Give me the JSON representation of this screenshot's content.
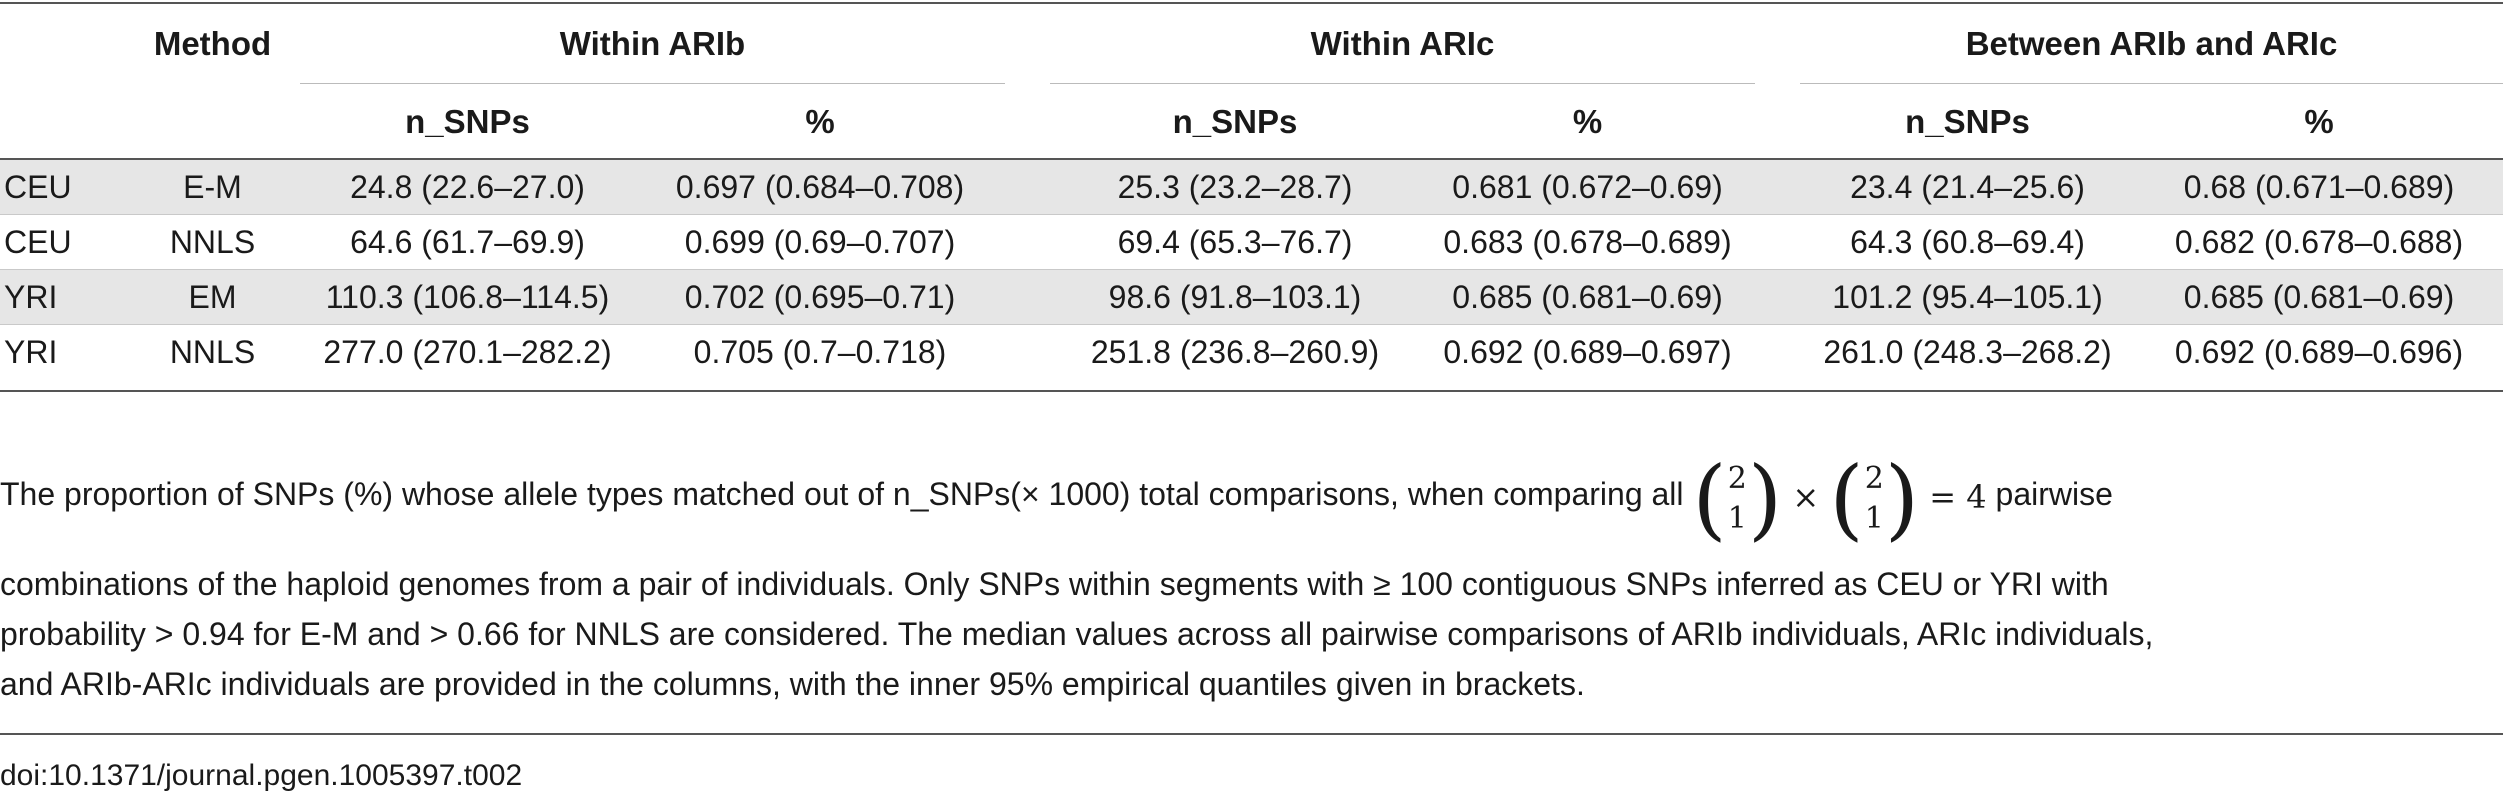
{
  "table": {
    "header": {
      "method": "Method",
      "groups": [
        "Within ARIb",
        "Within ARIc",
        "Between ARIb and ARIc"
      ],
      "sub": [
        "n_SNPs",
        "%",
        "n_SNPs",
        "%",
        "n_SNPs",
        "%"
      ]
    },
    "rows": [
      {
        "pop": "CEU",
        "method": "E-M",
        "cells": [
          "24.8 (22.6–27.0)",
          "0.697 (0.684–0.708)",
          "25.3 (23.2–28.7)",
          "0.681 (0.672–0.69)",
          "23.4 (21.4–25.6)",
          "0.68 (0.671–0.689)"
        ]
      },
      {
        "pop": "CEU",
        "method": "NNLS",
        "cells": [
          "64.6 (61.7–69.9)",
          "0.699 (0.69–0.707)",
          "69.4 (65.3–76.7)",
          "0.683 (0.678–0.689)",
          "64.3 (60.8–69.4)",
          "0.682 (0.678–0.688)"
        ]
      },
      {
        "pop": "YRI",
        "method": "EM",
        "cells": [
          "110.3 (106.8–114.5)",
          "0.702 (0.695–0.71)",
          "98.6 (91.8–103.1)",
          "0.685 (0.681–0.69)",
          "101.2 (95.4–105.1)",
          "0.685 (0.681–0.69)"
        ]
      },
      {
        "pop": "YRI",
        "method": "NNLS",
        "cells": [
          "277.0 (270.1–282.2)",
          "0.705 (0.7–0.718)",
          "251.8 (236.8–260.9)",
          "0.692 (0.689–0.697)",
          "261.0 (248.3–268.2)",
          "0.692 (0.689–0.696)"
        ]
      }
    ]
  },
  "footnote": {
    "line1_pre": "The proportion of SNPs (%) whose allele types matched out of n_SNPs(× 1000) total comparisons, when comparing all",
    "binom_top": "2",
    "binom_bottom": "1",
    "times": "×",
    "equals": "= 4",
    "line1_post": "pairwise",
    "line2": "combinations of the haploid genomes from a pair of individuals. Only SNPs within segments with ≥ 100 contiguous SNPs inferred as CEU or YRI with",
    "line3": "probability > 0.94 for E-M and > 0.66 for NNLS are considered. The median values across all pairwise comparisons of ARIb individuals, ARIc individuals,",
    "line4": "and ARIb-ARIc individuals are provided in the columns, with the inner 95% empirical quantiles given in brackets."
  },
  "doi": "doi:10.1371/journal.pgen.1005397.t002"
}
